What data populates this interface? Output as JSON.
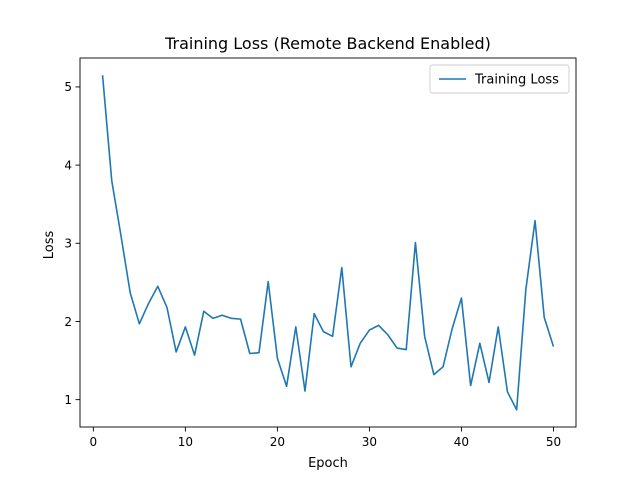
{
  "chart_data": {
    "type": "line",
    "title": "Training Loss (Remote Backend Enabled)",
    "xlabel": "Epoch",
    "ylabel": "Loss",
    "xlim": [
      -1.45,
      52.45
    ],
    "ylim": [
      0.65,
      5.37
    ],
    "xticks": [
      0,
      10,
      20,
      30,
      40,
      50
    ],
    "yticks": [
      1,
      2,
      3,
      4,
      5
    ],
    "grid": false,
    "legend_position": "top-right",
    "series": [
      {
        "name": "Training Loss",
        "color": "#1f77b4",
        "x": [
          1,
          2,
          3,
          4,
          5,
          6,
          7,
          8,
          9,
          10,
          11,
          12,
          13,
          14,
          15,
          16,
          17,
          18,
          19,
          20,
          21,
          22,
          23,
          24,
          25,
          26,
          27,
          28,
          29,
          30,
          31,
          32,
          33,
          34,
          35,
          36,
          37,
          38,
          39,
          40,
          41,
          42,
          43,
          44,
          45,
          46,
          47,
          48,
          49,
          50
        ],
        "y": [
          5.15,
          3.8,
          3.1,
          2.37,
          1.97,
          2.23,
          2.45,
          2.18,
          1.61,
          1.93,
          1.57,
          2.13,
          2.04,
          2.08,
          2.04,
          2.03,
          1.59,
          1.6,
          2.51,
          1.53,
          1.17,
          1.93,
          1.11,
          2.1,
          1.87,
          1.81,
          2.69,
          1.42,
          1.72,
          1.89,
          1.95,
          1.83,
          1.66,
          1.64,
          3.01,
          1.81,
          1.32,
          1.42,
          1.91,
          2.3,
          1.18,
          1.72,
          1.22,
          1.93,
          1.1,
          0.87,
          2.41,
          3.29,
          2.05,
          1.68
        ]
      }
    ]
  }
}
